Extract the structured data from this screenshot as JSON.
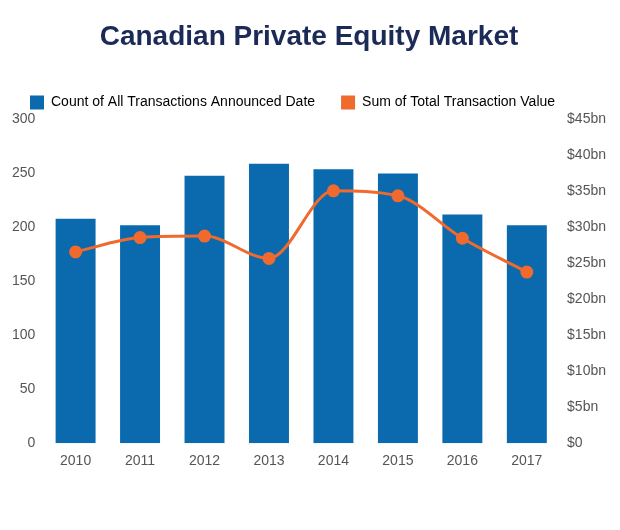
{
  "chart_data": {
    "type": "bar",
    "title": "Canadian Private Equity Market",
    "categories": [
      "2010",
      "2011",
      "2012",
      "2013",
      "2014",
      "2015",
      "2016",
      "2017"
    ],
    "series": [
      {
        "name": "Count of All Transactions Announced Date",
        "type": "bar",
        "color": "#0b6aae",
        "values": [
          208,
          202,
          248,
          259,
          254,
          250,
          212,
          202
        ]
      },
      {
        "name": "Sum of Total Transaction Value",
        "type": "line",
        "color": "#f0692d",
        "axis": "y2",
        "marker": "circle",
        "values": [
          26.6,
          28.6,
          28.8,
          25.7,
          35.1,
          34.4,
          28.5,
          23.8
        ]
      }
    ],
    "ylim": [
      0,
      300
    ],
    "yticks": [
      0,
      50,
      100,
      150,
      200,
      250,
      300
    ],
    "y2lim": [
      0,
      45
    ],
    "y2ticks": [
      {
        "value": 0,
        "label": "$0"
      },
      {
        "value": 5,
        "label": "$5bn"
      },
      {
        "value": 10,
        "label": "$10bn"
      },
      {
        "value": 15,
        "label": "$15bn"
      },
      {
        "value": 20,
        "label": "$20bn"
      },
      {
        "value": 25,
        "label": "$25bn"
      },
      {
        "value": 30,
        "label": "$30bn"
      },
      {
        "value": 35,
        "label": "$35bn"
      },
      {
        "value": 40,
        "label": "$40bn"
      },
      {
        "value": 45,
        "label": "$45bn"
      }
    ],
    "grid": false,
    "legend": "top-left"
  }
}
